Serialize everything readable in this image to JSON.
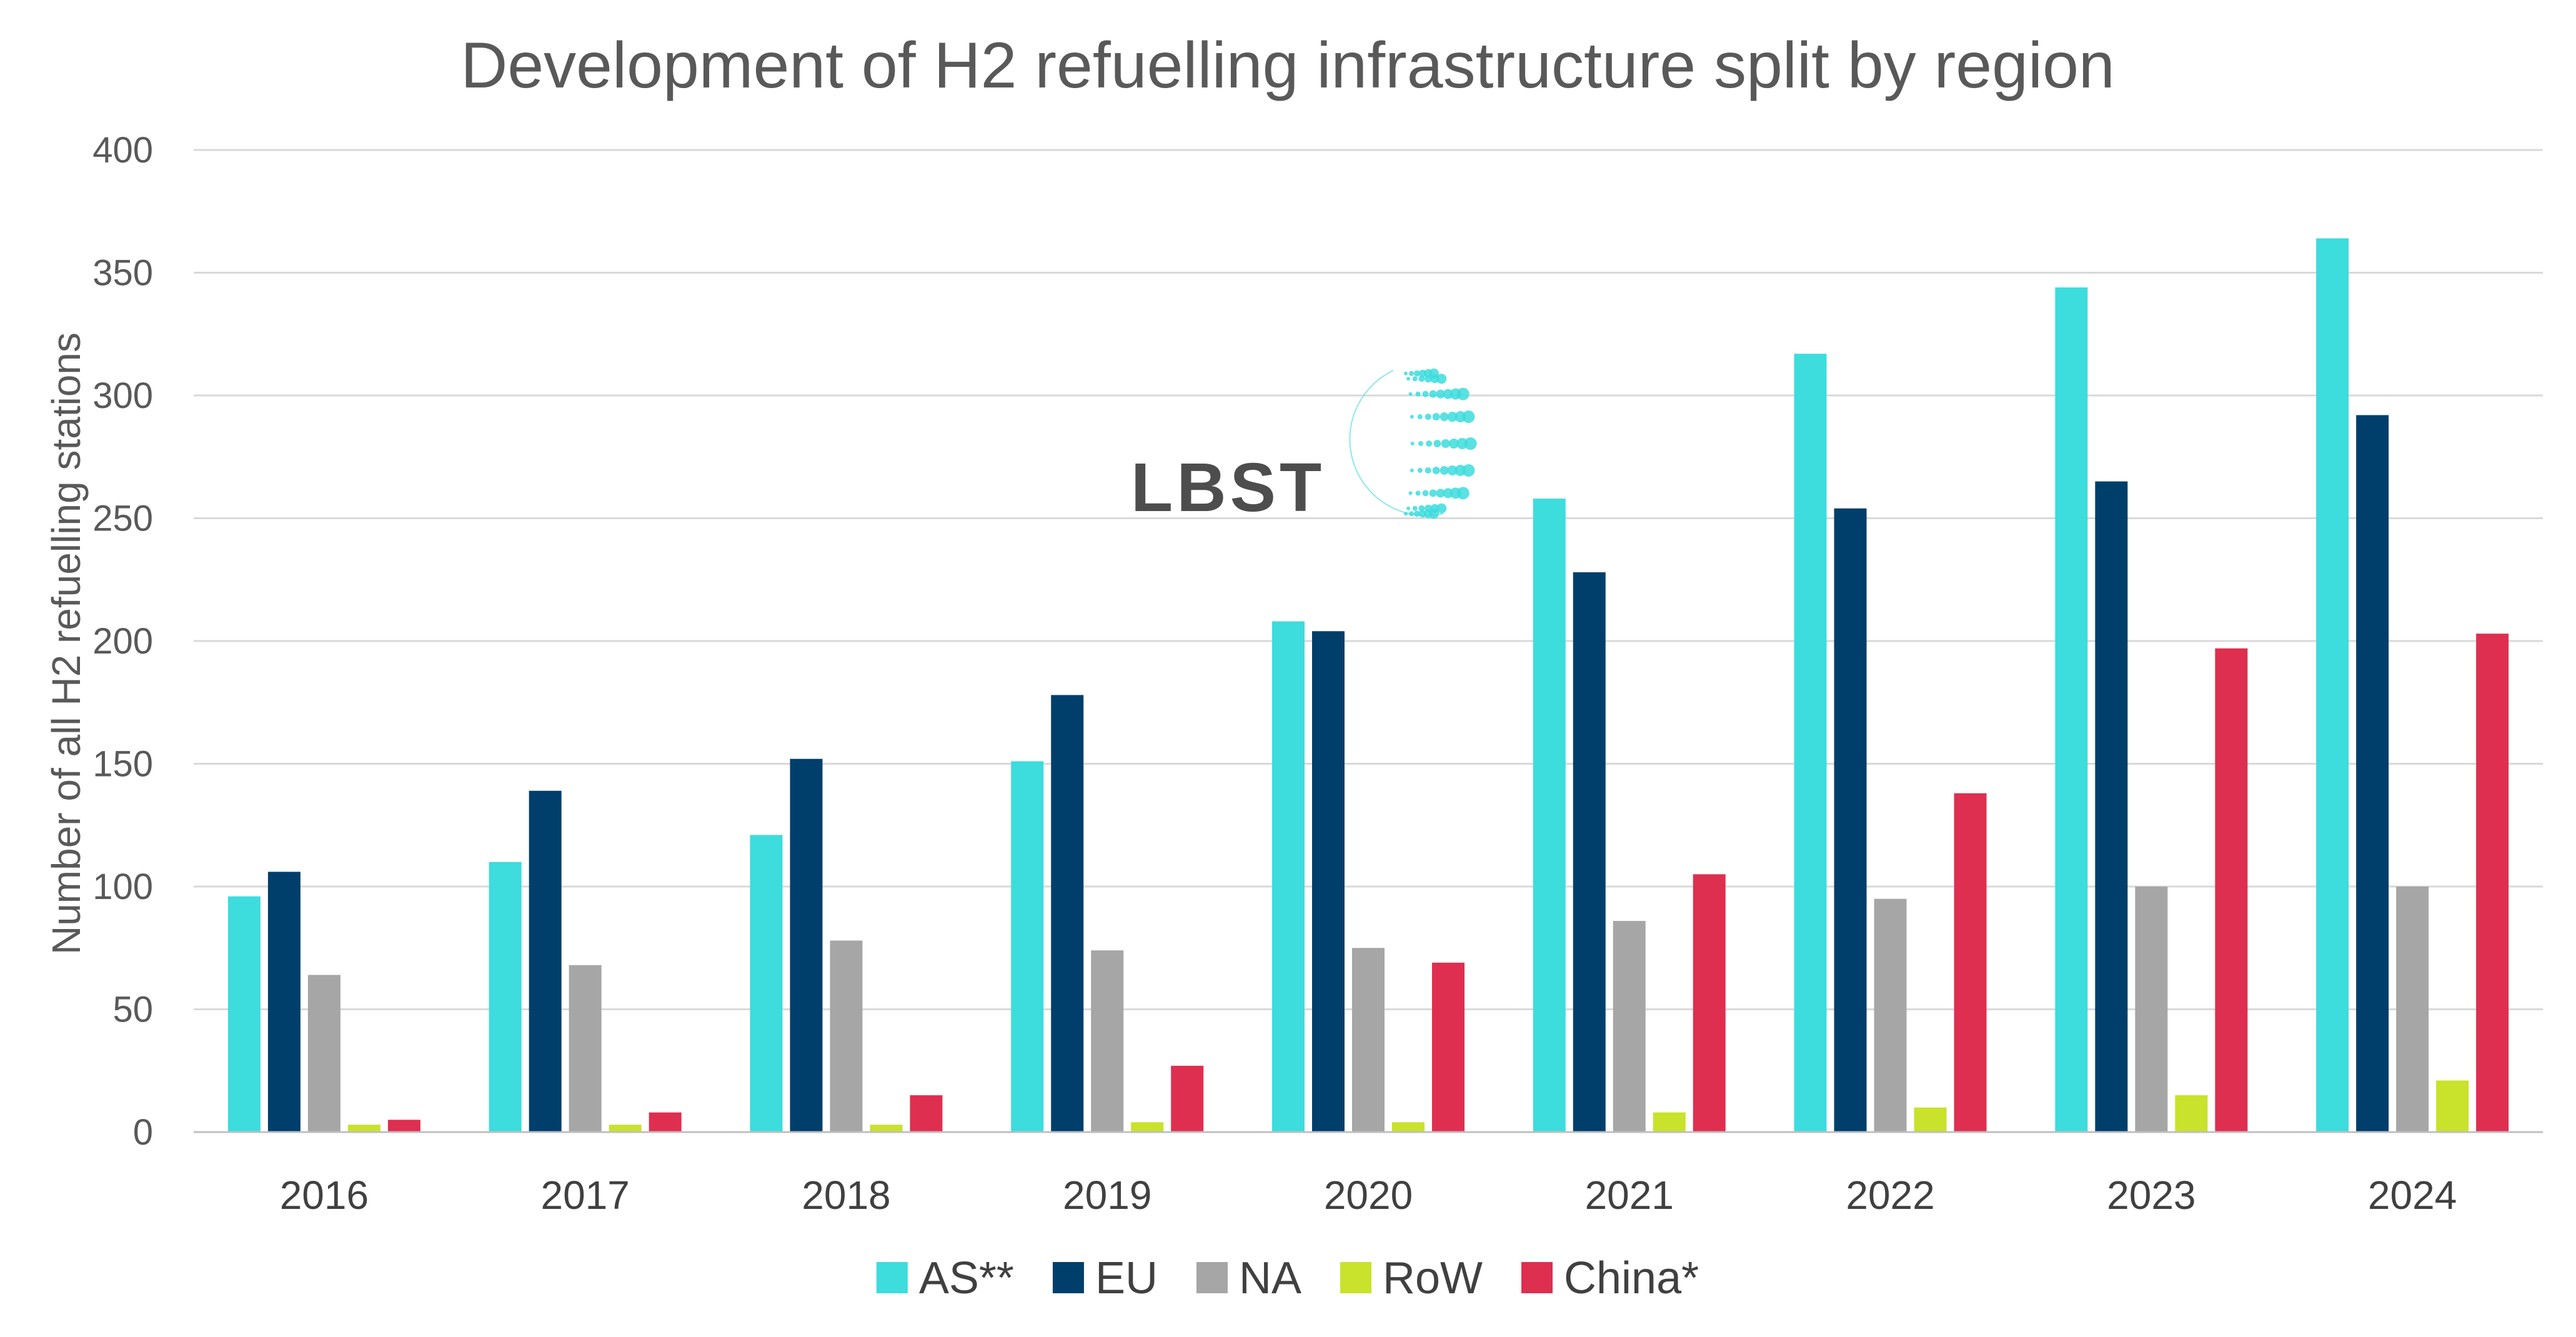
{
  "chart_data": {
    "type": "bar",
    "title": "Development of H2 refuelling infrastructure split by region",
    "xlabel": "",
    "ylabel": "Number of all H2 refuelling stations",
    "ylim": [
      0,
      400
    ],
    "yticks": [
      0,
      50,
      100,
      150,
      200,
      250,
      300,
      350,
      400
    ],
    "grid": true,
    "legend_position": "bottom",
    "categories": [
      "2016",
      "2017",
      "2018",
      "2019",
      "2020",
      "2021",
      "2022",
      "2023",
      "2024"
    ],
    "series": [
      {
        "name": "AS**",
        "color": "#3DDCDD",
        "values": [
          96,
          110,
          121,
          151,
          208,
          258,
          317,
          344,
          364
        ]
      },
      {
        "name": "EU",
        "color": "#003F6B",
        "values": [
          106,
          139,
          152,
          178,
          204,
          228,
          254,
          265,
          292
        ]
      },
      {
        "name": "NA",
        "color": "#A6A6A6",
        "values": [
          64,
          68,
          78,
          74,
          75,
          86,
          95,
          100,
          100
        ]
      },
      {
        "name": "RoW",
        "color": "#C9E22B",
        "values": [
          3,
          3,
          3,
          4,
          4,
          8,
          10,
          15,
          21
        ]
      },
      {
        "name": "China*",
        "color": "#DE2F50",
        "values": [
          5,
          8,
          15,
          27,
          69,
          105,
          138,
          197,
          203
        ]
      }
    ]
  },
  "logo": {
    "text": "LBST",
    "icon": "globe-dots-icon",
    "dot_color": "#3DDCDD"
  },
  "colors": {
    "gridline": "#D9D9D9",
    "axis_line": "#BFBFBF",
    "text": "#595959"
  }
}
